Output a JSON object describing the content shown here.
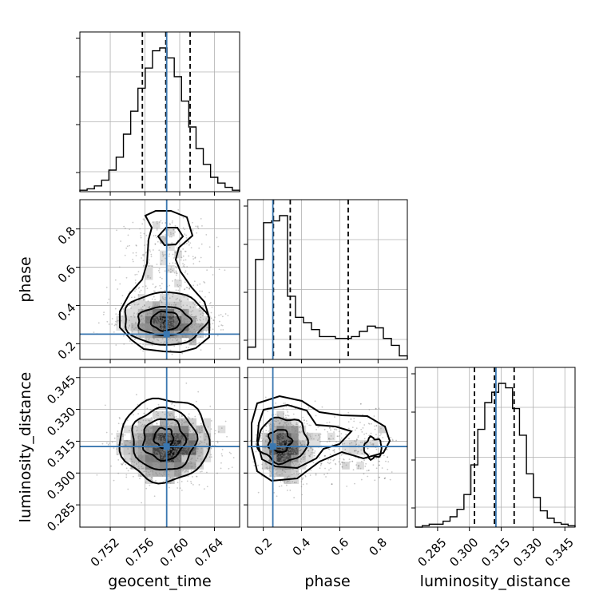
{
  "chart_data": {
    "type": "corner",
    "parameters": [
      "geocent_time",
      "phase",
      "luminosity_distance"
    ],
    "truths": {
      "geocent_time": 0.7585,
      "phase": 0.25,
      "luminosity_distance": 0.3125
    },
    "ranges": {
      "geocent_time": [
        0.7485,
        0.7669
      ],
      "phase": [
        0.118,
        0.953
      ],
      "luminosity_distance": [
        0.2745,
        0.3498
      ]
    },
    "ticks": {
      "geocent_time": [
        "0.752",
        "0.756",
        "0.760",
        "0.764"
      ],
      "phase": [
        "0.2",
        "0.4",
        "0.6",
        "0.8"
      ],
      "luminosity_distance": [
        "0.285",
        "0.300",
        "0.315",
        "0.330",
        "0.345"
      ]
    },
    "quantiles": {
      "geocent_time": [
        0.7557,
        0.7584,
        0.7612
      ],
      "phase": [
        0.253,
        0.341,
        0.644
      ],
      "luminosity_distance": [
        0.3024,
        0.3118,
        0.3211
      ]
    },
    "histograms": {
      "geocent_time": [
        1,
        2,
        4,
        8,
        15,
        24,
        40,
        56,
        72,
        86,
        98,
        100,
        93,
        80,
        63,
        45,
        30,
        19,
        10,
        6,
        3,
        1
      ],
      "phase": [
        7,
        57,
        78,
        79,
        82,
        36,
        24,
        21,
        17,
        13,
        13,
        12,
        12,
        13,
        16,
        19,
        18,
        12,
        8,
        2
      ],
      "luminosity_distance": [
        0,
        1,
        2,
        2,
        4,
        7,
        12,
        22,
        42,
        66,
        84,
        91,
        97,
        94,
        80,
        62,
        36,
        20,
        11,
        6,
        3,
        2,
        1
      ]
    }
  }
}
